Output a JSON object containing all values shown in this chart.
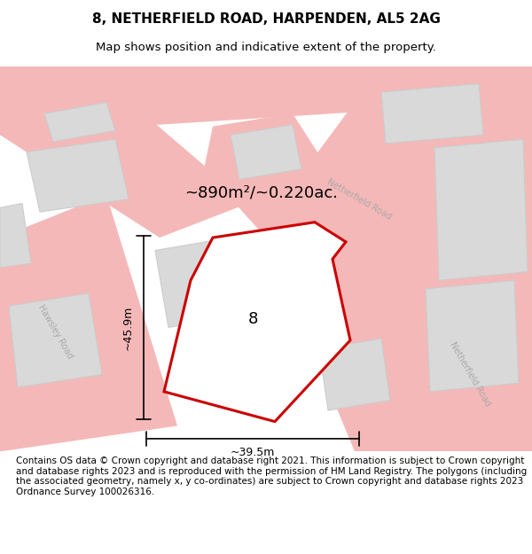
{
  "title": "8, NETHERFIELD ROAD, HARPENDEN, AL5 2AG",
  "subtitle": "Map shows position and indicative extent of the property.",
  "footer": "Contains OS data © Crown copyright and database right 2021. This information is subject to Crown copyright and database rights 2023 and is reproduced with the permission of HM Land Registry. The polygons (including the associated geometry, namely x, y co-ordinates) are subject to Crown copyright and database rights 2023 Ordnance Survey 100026316.",
  "area_label": "~890m²/~0.220ac.",
  "width_label": "~39.5m",
  "height_label": "~45.9m",
  "plot_number": "8",
  "bg_color": "#f2f2f2",
  "map_bg": "#f2f2f2",
  "road_color": "#f5b8b8",
  "building_color": "#d9d9d9",
  "building_edge": "#cccccc",
  "plot_edge": "#cc0000",
  "plot_fill": "#ffffff",
  "road_label_color": "#aaaaaa",
  "title_color": "#000000",
  "footer_color": "#000000",
  "map_xlim": [
    0,
    1
  ],
  "map_ylim": [
    0,
    1
  ]
}
